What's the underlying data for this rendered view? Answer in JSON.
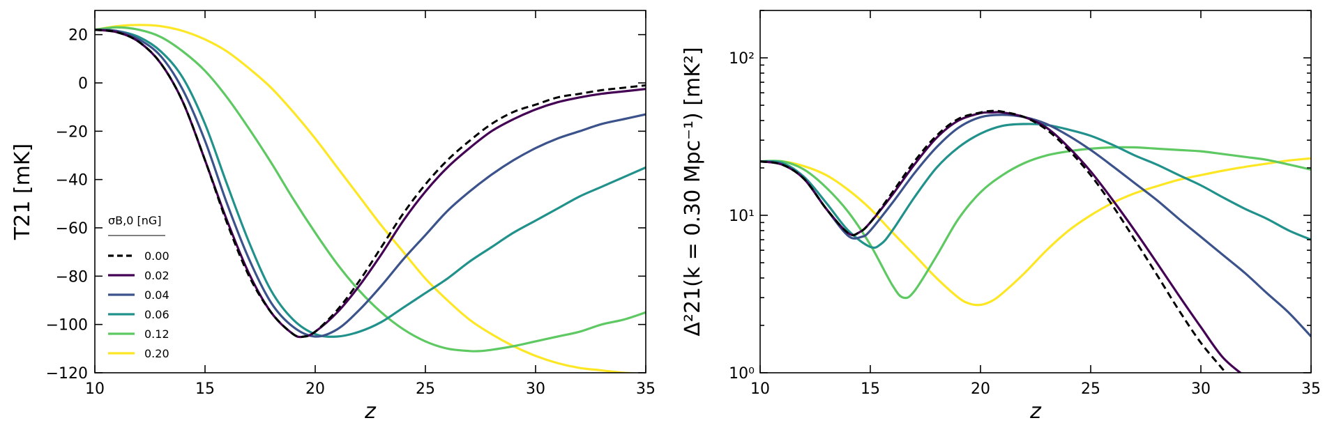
{
  "chart_data": [
    {
      "type": "line",
      "xlabel": "z",
      "ylabel": "T21 [mK]",
      "xlim": [
        10,
        35
      ],
      "ylim": [
        -120,
        30
      ],
      "xticks": [
        10,
        15,
        20,
        25,
        30,
        35
      ],
      "yticks": [
        20,
        0,
        -20,
        -40,
        -60,
        -80,
        -100,
        -120
      ],
      "xtick_labels": [
        "10",
        "15",
        "20",
        "25",
        "30",
        "35"
      ],
      "ytick_labels": [
        "20",
        "0",
        "−20",
        "−40",
        "−60",
        "−80",
        "−100",
        "−120"
      ],
      "legend": {
        "title": "σB,0 [nG]",
        "placement": "lower-left",
        "entries": [
          "0.00",
          "0.02",
          "0.04",
          "0.06",
          "0.12",
          "0.20"
        ]
      },
      "series": [
        {
          "name": "0.00",
          "color": "#000000",
          "dashed": true,
          "x": [
            10,
            11,
            12,
            13,
            14,
            15,
            16,
            17,
            18,
            19,
            19.5,
            20,
            21,
            22,
            23,
            24,
            25,
            26,
            27,
            28,
            29,
            30,
            31,
            32,
            33,
            34,
            35
          ],
          "y": [
            22,
            21,
            17,
            8,
            -8,
            -32,
            -58,
            -80,
            -95,
            -104,
            -105,
            -103,
            -94,
            -82,
            -68,
            -54,
            -42,
            -32,
            -24,
            -17,
            -12,
            -9,
            -6,
            -4.5,
            -3,
            -2,
            -1
          ]
        },
        {
          "name": "0.02",
          "color": "#440154",
          "dashed": false,
          "x": [
            10,
            11,
            12,
            13,
            14,
            15,
            16,
            17,
            18,
            19,
            19.5,
            20,
            21,
            22,
            23,
            24,
            25,
            26,
            27,
            28,
            29,
            30,
            31,
            32,
            33,
            34,
            35
          ],
          "y": [
            22,
            21,
            17,
            8,
            -8,
            -32,
            -57,
            -79,
            -95,
            -104,
            -105,
            -103,
            -95,
            -84,
            -71,
            -57,
            -45,
            -35,
            -27,
            -20,
            -15,
            -11,
            -8,
            -6,
            -4.5,
            -3.5,
            -2.5
          ]
        },
        {
          "name": "0.04",
          "color": "#3b528b",
          "dashed": false,
          "x": [
            10,
            11,
            12,
            13,
            14,
            15,
            16,
            17,
            18,
            19,
            20,
            21,
            22,
            23,
            24,
            25,
            26,
            27,
            28,
            29,
            30,
            31,
            32,
            33,
            34,
            35
          ],
          "y": [
            22,
            21.5,
            18,
            11,
            -3,
            -24,
            -50,
            -73,
            -91,
            -101,
            -105,
            -102,
            -94,
            -84,
            -73,
            -63,
            -53,
            -45,
            -38,
            -32,
            -27,
            -23,
            -20,
            -17,
            -15,
            -13
          ]
        },
        {
          "name": "0.06",
          "color": "#21918c",
          "dashed": false,
          "x": [
            10,
            11,
            12,
            13,
            14,
            15,
            16,
            17,
            18,
            19,
            20,
            21,
            22,
            23,
            24,
            25,
            26,
            27,
            28,
            29,
            30,
            31,
            32,
            33,
            34,
            35
          ],
          "y": [
            22,
            21.5,
            19,
            13,
            2,
            -17,
            -42,
            -66,
            -86,
            -98,
            -104,
            -105,
            -103,
            -99,
            -93,
            -87,
            -81,
            -74,
            -68,
            -62,
            -57,
            -52,
            -47,
            -43,
            -39,
            -35
          ]
        },
        {
          "name": "0.12",
          "color": "#5ec962",
          "dashed": false,
          "x": [
            10,
            11,
            12,
            13,
            14,
            15,
            16,
            17,
            18,
            19,
            20,
            21,
            22,
            23,
            24,
            25,
            26,
            27,
            27.5,
            28,
            29,
            30,
            31,
            32,
            33,
            34,
            35
          ],
          "y": [
            22,
            23,
            22,
            19,
            13,
            5,
            -6,
            -19,
            -33,
            -48,
            -62,
            -75,
            -86,
            -95,
            -102,
            -107,
            -110,
            -111,
            -111,
            -110.5,
            -109,
            -107,
            -105,
            -103,
            -100,
            -98,
            -95
          ]
        },
        {
          "name": "0.20",
          "color": "#fde725",
          "dashed": false,
          "x": [
            10,
            11,
            12,
            13,
            14,
            15,
            16,
            17,
            18,
            19,
            20,
            21,
            22,
            23,
            24,
            25,
            26,
            27,
            28,
            29,
            30,
            31,
            32,
            33,
            34,
            35
          ],
          "y": [
            22,
            23.5,
            24,
            23.5,
            21.5,
            18,
            13,
            6,
            -2,
            -12,
            -23,
            -35,
            -47,
            -59,
            -70,
            -81,
            -90,
            -98,
            -104,
            -109,
            -113,
            -116,
            -118,
            -119,
            -120,
            -120.5
          ]
        }
      ]
    },
    {
      "type": "line",
      "xlabel": "z",
      "ylabel": "Δ²21(k = 0.30 Mpc⁻¹) [mK²]",
      "yscale": "log",
      "xlim": [
        10,
        35
      ],
      "ylim": [
        1,
        200
      ],
      "xticks": [
        10,
        15,
        20,
        25,
        30,
        35
      ],
      "yticks": [
        1,
        10,
        100
      ],
      "xtick_labels": [
        "10",
        "15",
        "20",
        "25",
        "30",
        "35"
      ],
      "ytick_labels": [
        "10⁰",
        "10¹",
        "10²"
      ],
      "series": [
        {
          "name": "0.00",
          "color": "#000000",
          "dashed": true,
          "x": [
            10,
            11,
            12,
            13,
            14,
            14.5,
            15,
            16,
            17,
            18,
            19,
            20,
            20.5,
            21,
            22,
            23,
            24,
            25,
            26,
            27,
            28,
            29,
            30,
            31,
            31.5
          ],
          "y": [
            22,
            21,
            17,
            11,
            7.7,
            7.8,
            9,
            14,
            22,
            32,
            41,
            45,
            46,
            45.5,
            42,
            35,
            26,
            18,
            11.5,
            7,
            4.2,
            2.5,
            1.55,
            1.05,
            0.85
          ]
        },
        {
          "name": "0.02",
          "color": "#440154",
          "dashed": false,
          "x": [
            10,
            11,
            12,
            13,
            14,
            14.5,
            15,
            16,
            17,
            18,
            19,
            20,
            20.5,
            21,
            22,
            23,
            24,
            25,
            26,
            27,
            28,
            29,
            30,
            31,
            32,
            32.5
          ],
          "y": [
            22,
            21,
            17,
            11,
            7.7,
            7.8,
            9,
            13.5,
            21,
            31,
            40,
            44.5,
            45,
            45,
            42,
            36,
            27,
            19,
            12.5,
            8,
            5,
            3.1,
            1.95,
            1.25,
            0.95,
            0.85
          ]
        },
        {
          "name": "0.04",
          "color": "#3b528b",
          "dashed": false,
          "x": [
            10,
            11,
            12,
            13,
            14,
            14.6,
            15,
            16,
            17,
            18,
            19,
            20,
            21,
            22,
            23,
            24,
            25,
            26,
            27,
            28,
            29,
            30,
            31,
            32,
            33,
            34,
            35
          ],
          "y": [
            22,
            21,
            17,
            11,
            7.4,
            7.3,
            8,
            12,
            18.5,
            27,
            36,
            42,
            43.5,
            42,
            38,
            32,
            26,
            20.5,
            16,
            12.5,
            9.5,
            7.3,
            5.6,
            4.3,
            3.2,
            2.4,
            1.7
          ]
        },
        {
          "name": "0.06",
          "color": "#21918c",
          "dashed": false,
          "x": [
            10,
            11,
            12,
            13,
            14,
            15,
            15.5,
            16,
            17,
            18,
            19,
            20,
            21,
            22,
            23,
            24,
            25,
            26,
            27,
            28,
            29,
            30,
            31,
            32,
            33,
            34,
            35
          ],
          "y": [
            22,
            21.5,
            17.5,
            12,
            8,
            6.3,
            6.6,
            8,
            13,
            20,
            27,
            33,
            37,
            38,
            37.5,
            35,
            32,
            28,
            24,
            21,
            18,
            15.5,
            13,
            11,
            9.5,
            8,
            7
          ]
        },
        {
          "name": "0.12",
          "color": "#5ec962",
          "dashed": false,
          "x": [
            10,
            11,
            12,
            13,
            14,
            15,
            16,
            16.5,
            17,
            18,
            19,
            20,
            21,
            22,
            23,
            24,
            25,
            26,
            27,
            28,
            29,
            30,
            31,
            32,
            33,
            34,
            35
          ],
          "y": [
            22,
            22,
            19.5,
            15,
            10.5,
            6.5,
            3.6,
            3,
            3.3,
            5.5,
            9.5,
            14,
            18,
            21.5,
            24,
            25.5,
            26.5,
            27,
            27,
            26.5,
            26,
            25.5,
            24.5,
            23.5,
            22.5,
            21,
            19.5
          ]
        },
        {
          "name": "0.20",
          "color": "#fde725",
          "dashed": false,
          "x": [
            10,
            11,
            12,
            13,
            14,
            15,
            16,
            17,
            18,
            19,
            19.5,
            20,
            20.5,
            21,
            22,
            23,
            24,
            25,
            26,
            27,
            28,
            29,
            30,
            31,
            32,
            33,
            34,
            35
          ],
          "y": [
            22,
            22,
            20.5,
            18,
            14.5,
            11,
            7.8,
            5.6,
            4,
            3,
            2.75,
            2.7,
            2.85,
            3.2,
            4.3,
            6,
            8,
            10,
            12,
            13.8,
            15.3,
            16.8,
            18,
            19.2,
            20.3,
            21.3,
            22.3,
            23
          ]
        }
      ]
    }
  ]
}
